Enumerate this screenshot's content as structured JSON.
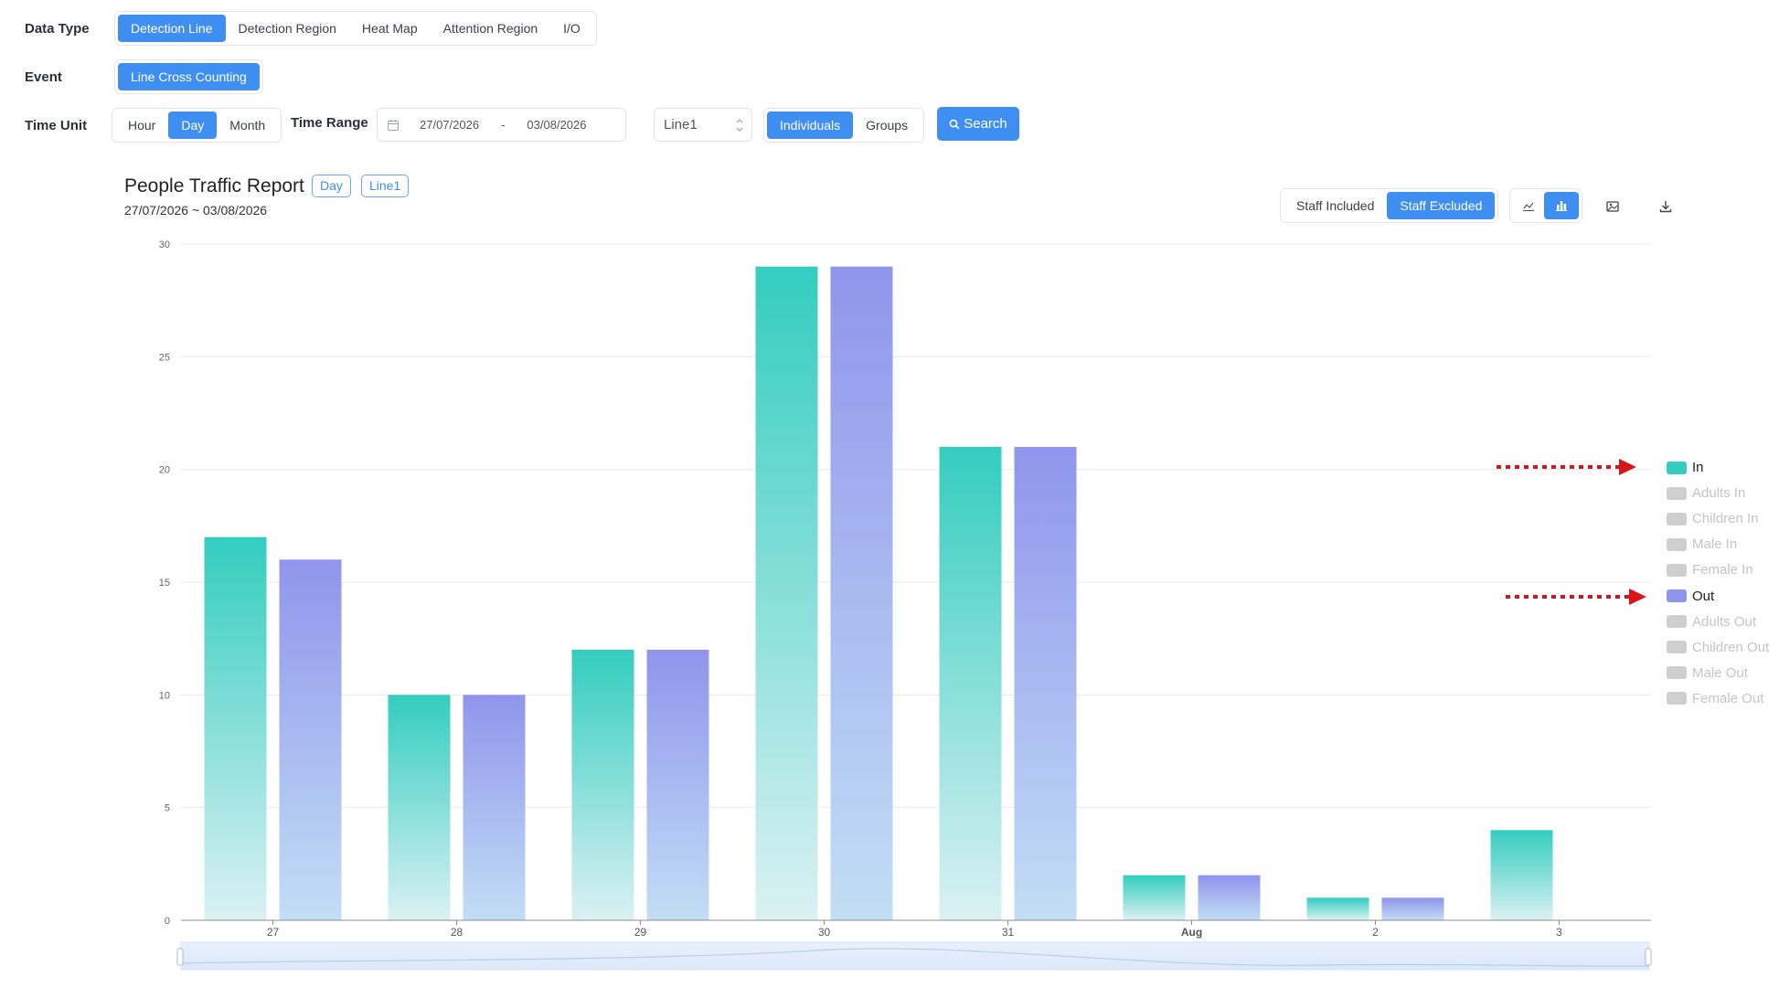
{
  "filters": {
    "data_type": {
      "label": "Data Type",
      "options": [
        "Detection Line",
        "Detection Region",
        "Heat Map",
        "Attention Region",
        "I/O"
      ],
      "selected": "Detection Line"
    },
    "event": {
      "label": "Event",
      "options": [
        "Line Cross Counting"
      ],
      "selected": "Line Cross Counting"
    },
    "time_unit": {
      "label": "Time Unit",
      "options": [
        "Hour",
        "Day",
        "Month"
      ],
      "selected": "Day"
    },
    "time_range": {
      "label": "Time Range",
      "start": "27/07/2026",
      "separator": "-",
      "end": "03/08/2026"
    },
    "line_select": {
      "value": "Line1"
    },
    "count_mode": {
      "options": [
        "Individuals",
        "Groups"
      ],
      "selected": "Individuals"
    },
    "search_label": "Search"
  },
  "report": {
    "title": "People Traffic Report",
    "tags": [
      "Day",
      "Line1"
    ],
    "date_range": "27/07/2026 ~ 03/08/2026",
    "staff_toggle": {
      "options": [
        "Staff Included",
        "Staff Excluded"
      ],
      "selected": "Staff Excluded"
    },
    "chart_view": {
      "selected": "bar"
    }
  },
  "colors": {
    "accent": "#3f8ef2",
    "in_top": "#33cdbf",
    "in_bottom": "#dbf1f3",
    "out_top": "#8f95ec",
    "out_bottom": "#c2def5",
    "legend_disabled": "#cfcfcf",
    "annotation_arrow": "#d8141b"
  },
  "chart_data": {
    "type": "bar",
    "categories": [
      "27",
      "28",
      "29",
      "30",
      "31",
      "Aug",
      "2",
      "3"
    ],
    "series": [
      {
        "name": "In",
        "values": [
          17,
          10,
          12,
          29,
          21,
          2,
          1,
          4
        ],
        "color": "#33cdbf"
      },
      {
        "name": "Out",
        "values": [
          16,
          10,
          12,
          29,
          21,
          2,
          1,
          0
        ],
        "color": "#8f95ec"
      }
    ],
    "ylim": [
      0,
      30
    ],
    "yticks": [
      0,
      5,
      10,
      15,
      20,
      25,
      30
    ],
    "grid": true,
    "legend_position": "right",
    "legend": [
      {
        "name": "In",
        "active": true
      },
      {
        "name": "Adults In",
        "active": false
      },
      {
        "name": "Children In",
        "active": false
      },
      {
        "name": "Male In",
        "active": false
      },
      {
        "name": "Female In",
        "active": false
      },
      {
        "name": "Out",
        "active": true
      },
      {
        "name": "Adults Out",
        "active": false
      },
      {
        "name": "Children Out",
        "active": false
      },
      {
        "name": "Male Out",
        "active": false
      },
      {
        "name": "Female Out",
        "active": false
      }
    ]
  }
}
